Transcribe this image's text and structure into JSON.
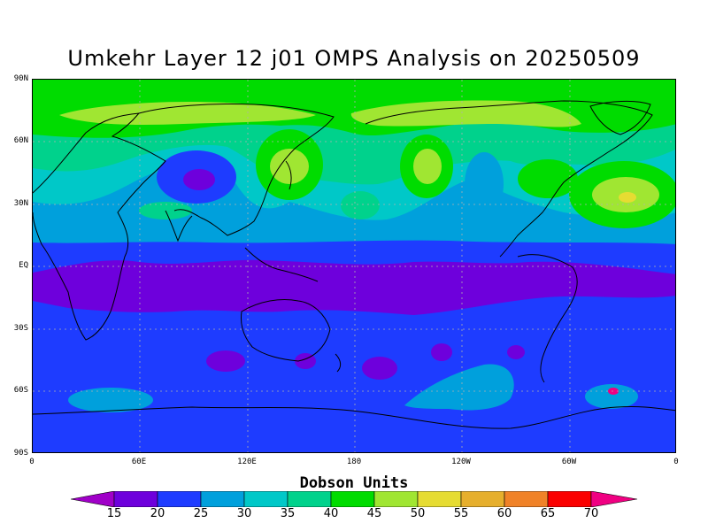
{
  "title": "Umkehr Layer 12 j01 OMPS Analysis on 20250509",
  "map": {
    "lat_labels": [
      "90N",
      "60N",
      "30N",
      "EQ",
      "30S",
      "60S",
      "90S"
    ],
    "lon_labels": [
      "0",
      "60E",
      "120E",
      "180",
      "120W",
      "60W",
      "0"
    ],
    "colors": {
      "below15": "#a000c8",
      "c15_20": "#6e00dc",
      "c20_25": "#1e3cff",
      "c25_30": "#00a0dc",
      "c30_35": "#00c8c8",
      "c35_40": "#00d28c",
      "c40_45": "#00dc00",
      "c45_50": "#a0e632",
      "c50_55": "#e6dc32",
      "c55_60": "#e6af2d",
      "c60_65": "#f08228",
      "c65_70": "#fa0000",
      "above70": "#f00082"
    }
  },
  "colorbar": {
    "title": "Dobson Units",
    "tick_labels": [
      "15",
      "20",
      "25",
      "30",
      "35",
      "40",
      "45",
      "50",
      "55",
      "60",
      "65",
      "70"
    ]
  }
}
